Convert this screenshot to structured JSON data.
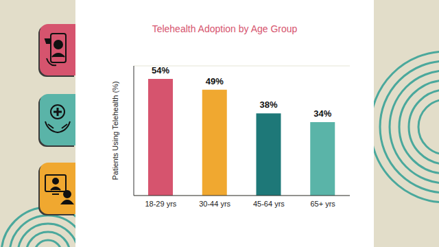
{
  "chart_data": {
    "type": "bar",
    "title": "Telehealth Adoption by Age Group",
    "y_label": "Patients Using Telehealth (%)",
    "categories": [
      "18-29 yrs",
      "30-44 yrs",
      "45-64 yrs",
      "65+ yrs"
    ],
    "values": [
      54,
      49,
      38,
      34
    ],
    "value_labels": [
      "54%",
      "49%",
      "38%",
      "34%"
    ],
    "colors": [
      "#d6546e",
      "#f0a830",
      "#1e7878",
      "#5ab4a8"
    ],
    "ylim": [
      0,
      60
    ],
    "yticks": [
      0,
      10,
      20,
      30,
      40,
      50,
      60
    ],
    "grid": true,
    "data_labels": true,
    "tick_labels": "x"
  }
}
